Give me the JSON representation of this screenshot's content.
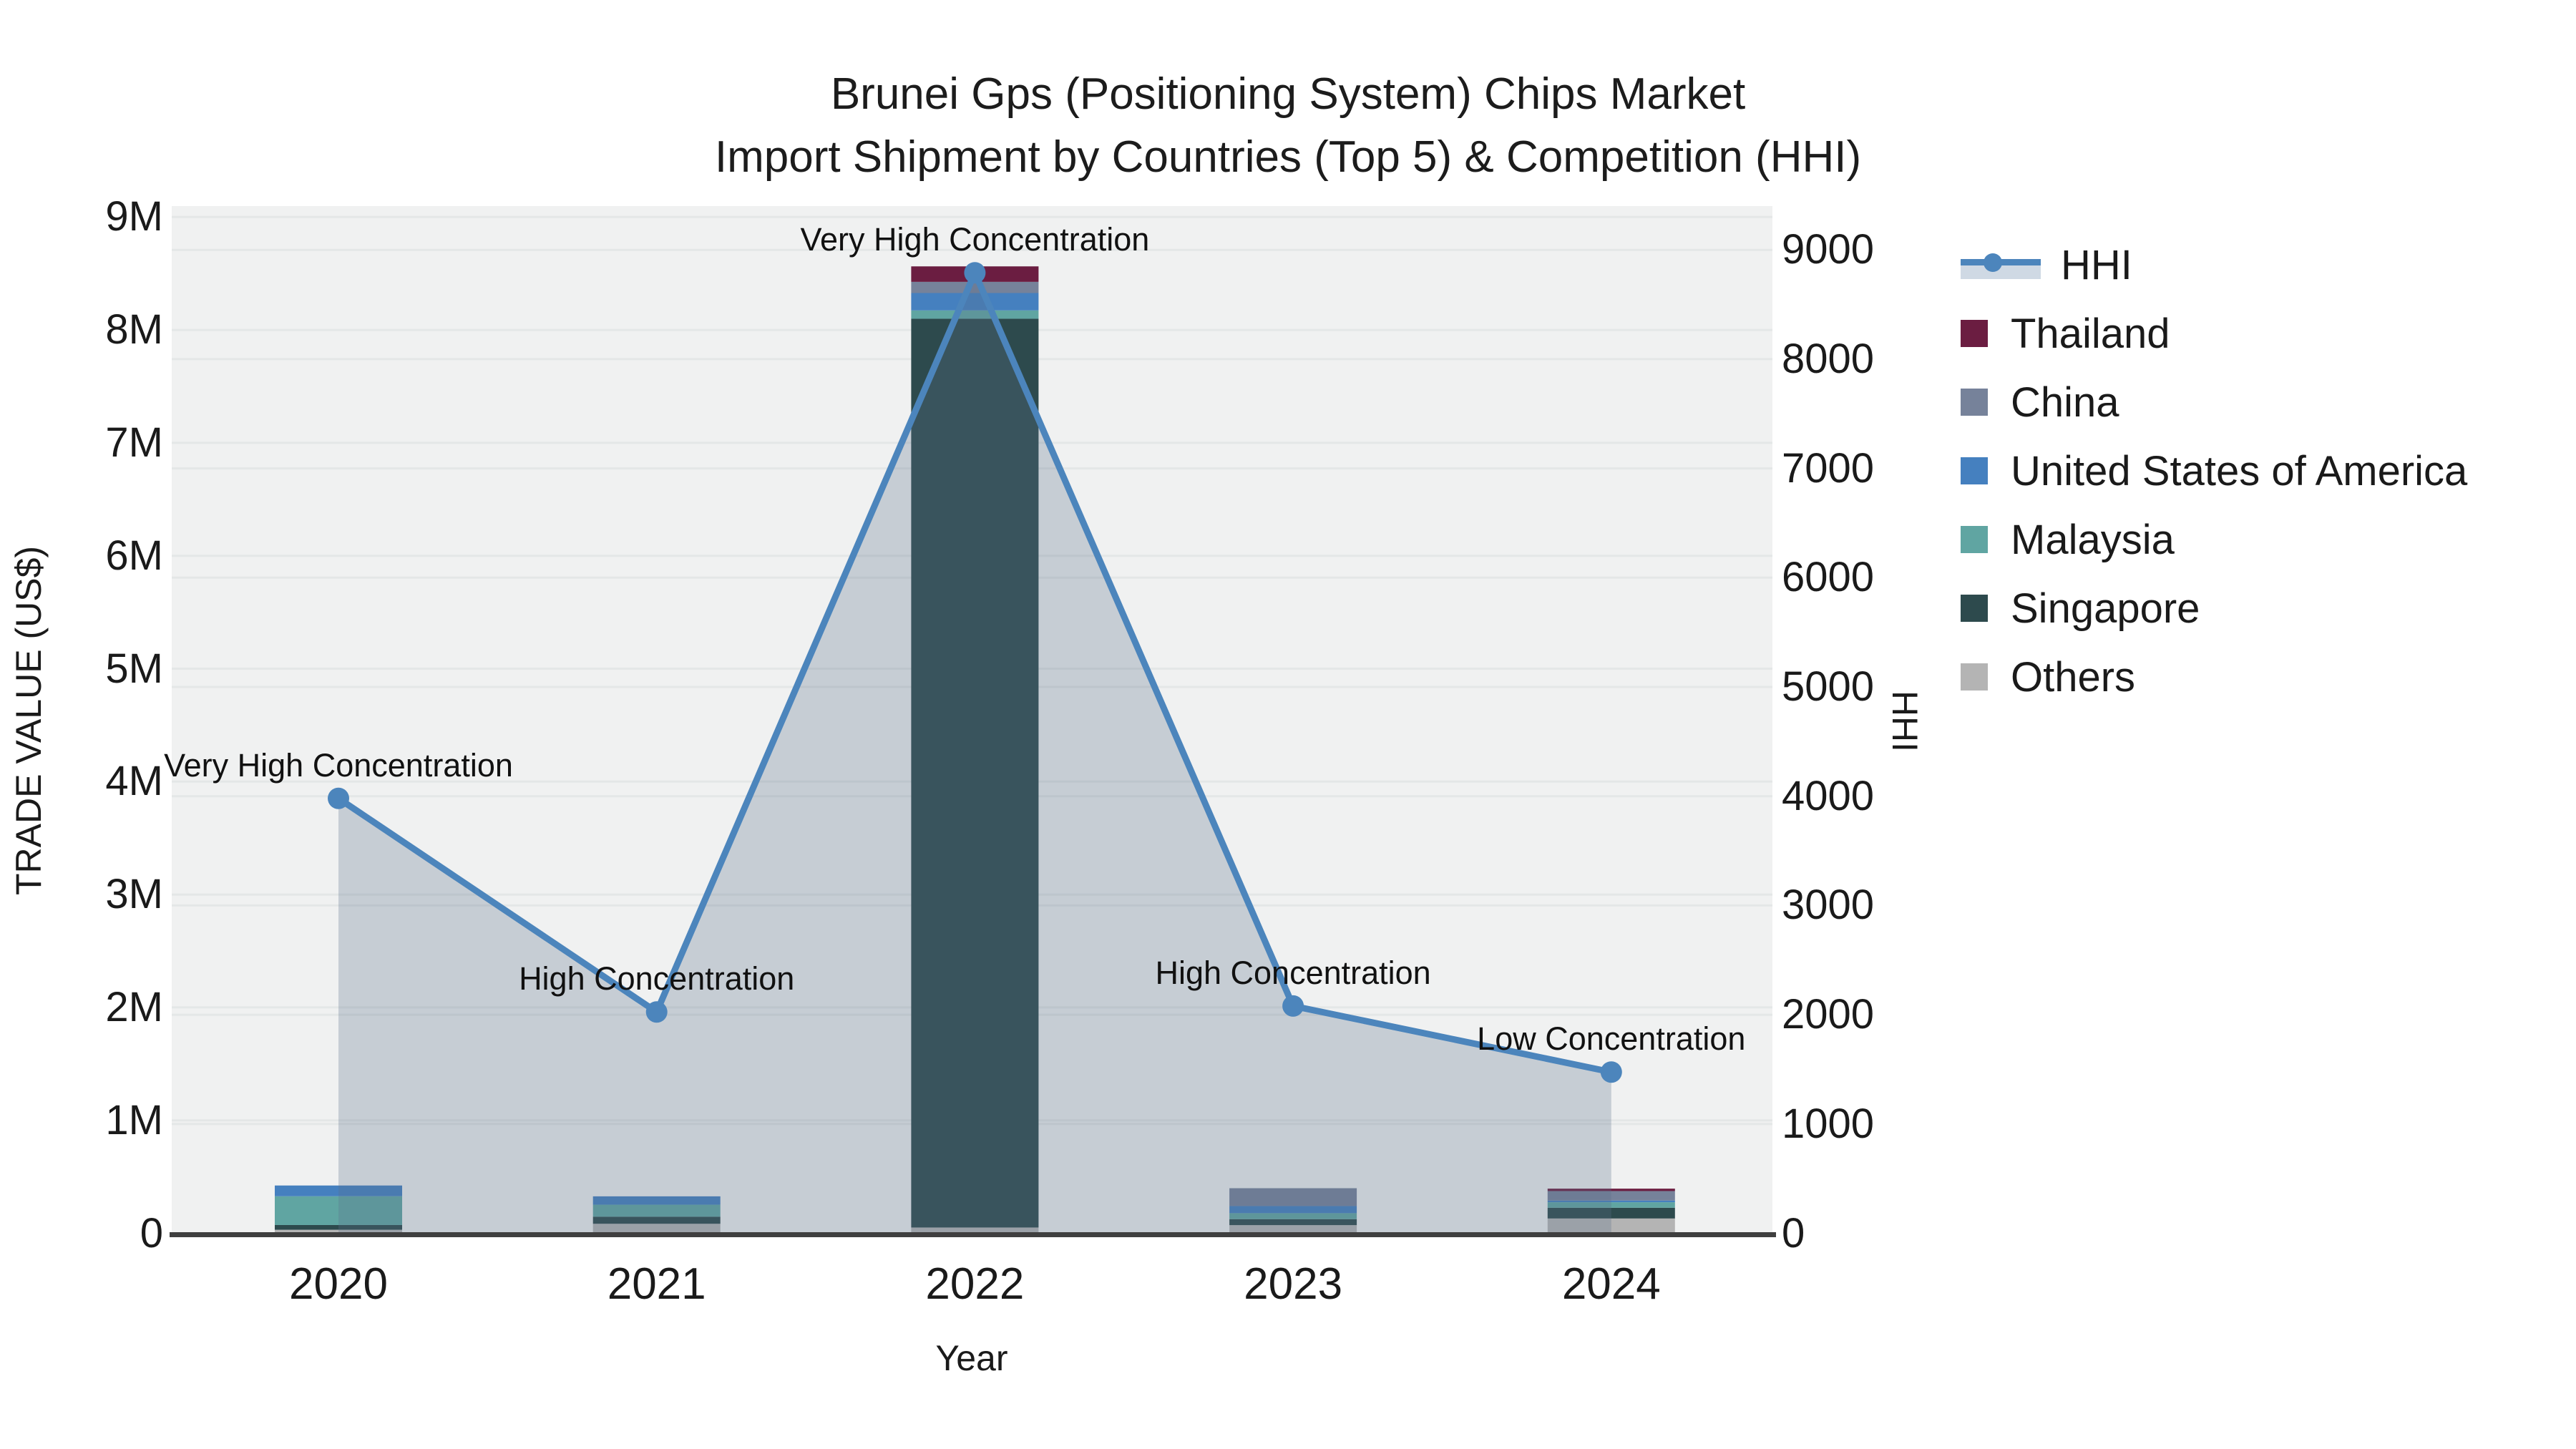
{
  "title": {
    "line1": "Brunei Gps (Positioning System) Chips Market",
    "line2": "Import Shipment by Countries (Top 5) & Competition (HHI)"
  },
  "axes": {
    "x": {
      "title": "Year",
      "tick_labels": [
        "2020",
        "2021",
        "2022",
        "2023",
        "2024"
      ]
    },
    "y_left": {
      "title": "TRADE VALUE (US$)",
      "tick_labels": [
        "0",
        "1M",
        "2M",
        "3M",
        "4M",
        "5M",
        "6M",
        "7M",
        "8M",
        "9M"
      ]
    },
    "y_right": {
      "title": "HHI",
      "tick_labels": [
        "0",
        "1000",
        "2000",
        "3000",
        "4000",
        "5000",
        "6000",
        "7000",
        "8000",
        "9000"
      ]
    }
  },
  "legend": [
    {
      "label": "HHI",
      "color": "#4c85bc",
      "type": "line"
    },
    {
      "label": "Thailand",
      "color": "#6b1d41",
      "type": "square"
    },
    {
      "label": "China",
      "color": "#76829a",
      "type": "square"
    },
    {
      "label": "United States of America",
      "color": "#4580bf",
      "type": "square"
    },
    {
      "label": "Malaysia",
      "color": "#60a5a2",
      "type": "square"
    },
    {
      "label": "Singapore",
      "color": "#2d4a4d",
      "type": "square"
    },
    {
      "label": "Others",
      "color": "#b4b4b4",
      "type": "square"
    }
  ],
  "chart_data": {
    "type": [
      "bar",
      "line"
    ],
    "x": [
      "2020",
      "2021",
      "2022",
      "2023",
      "2024"
    ],
    "title": "Brunei Gps (Positioning System) Chips Market — Import Shipment by Countries (Top 5) & Competition (HHI)",
    "xlabel": "Year",
    "ylabel_left": "TRADE VALUE (US$)",
    "ylabel_right": "HHI",
    "ylim_left_musd": [
      0,
      9.1
    ],
    "ylim_right": [
      0,
      9400
    ],
    "grid": true,
    "legend_position": "right",
    "bar_stack_order_bottom_to_top": [
      "Others",
      "Singapore",
      "Malaysia",
      "United States of America",
      "China",
      "Thailand"
    ],
    "bar_series": [
      {
        "name": "Others",
        "color": "#b4b4b4",
        "values_musd": [
          0.031,
          0.084,
          0.051,
          0.072,
          0.131
        ]
      },
      {
        "name": "Singapore",
        "color": "#2d4a4d",
        "values_musd": [
          0.042,
          0.063,
          8.048,
          0.053,
          0.095
        ]
      },
      {
        "name": "Malaysia",
        "color": "#60a5a2",
        "values_musd": [
          0.255,
          0.106,
          0.074,
          0.053,
          0.049
        ]
      },
      {
        "name": "United States of America",
        "color": "#4580bf",
        "values_musd": [
          0.095,
          0.074,
          0.154,
          0.063,
          0.015
        ]
      },
      {
        "name": "China",
        "color": "#76829a",
        "values_musd": [
          0.0,
          0.0,
          0.099,
          0.158,
          0.084
        ]
      },
      {
        "name": "Thailand",
        "color": "#6b1d41",
        "values_musd": [
          0.0,
          0.0,
          0.137,
          0.0,
          0.021
        ]
      }
    ],
    "bar_totals_musd": [
      0.423,
      0.327,
      8.563,
      0.399,
      0.395
    ],
    "line_series": {
      "name": "HHI",
      "color": "#4c85bc",
      "fill": "rgba(90,110,136,0.28)",
      "values": [
        3980,
        2025,
        8790,
        2080,
        1475
      ]
    },
    "annotations": [
      {
        "x": "2020",
        "text": "Very High Concentration"
      },
      {
        "x": "2021",
        "text": "High Concentration"
      },
      {
        "x": "2022",
        "text": "Very High Concentration"
      },
      {
        "x": "2023",
        "text": "High Concentration"
      },
      {
        "x": "2024",
        "text": "Low Concentration"
      }
    ]
  },
  "style": {
    "plot_bg": "#f0f1f1",
    "gridline_color": "#e4e7e7",
    "axis_line_color": "#3f3f3f",
    "hhi_legend_band": "#cfd9e4"
  }
}
